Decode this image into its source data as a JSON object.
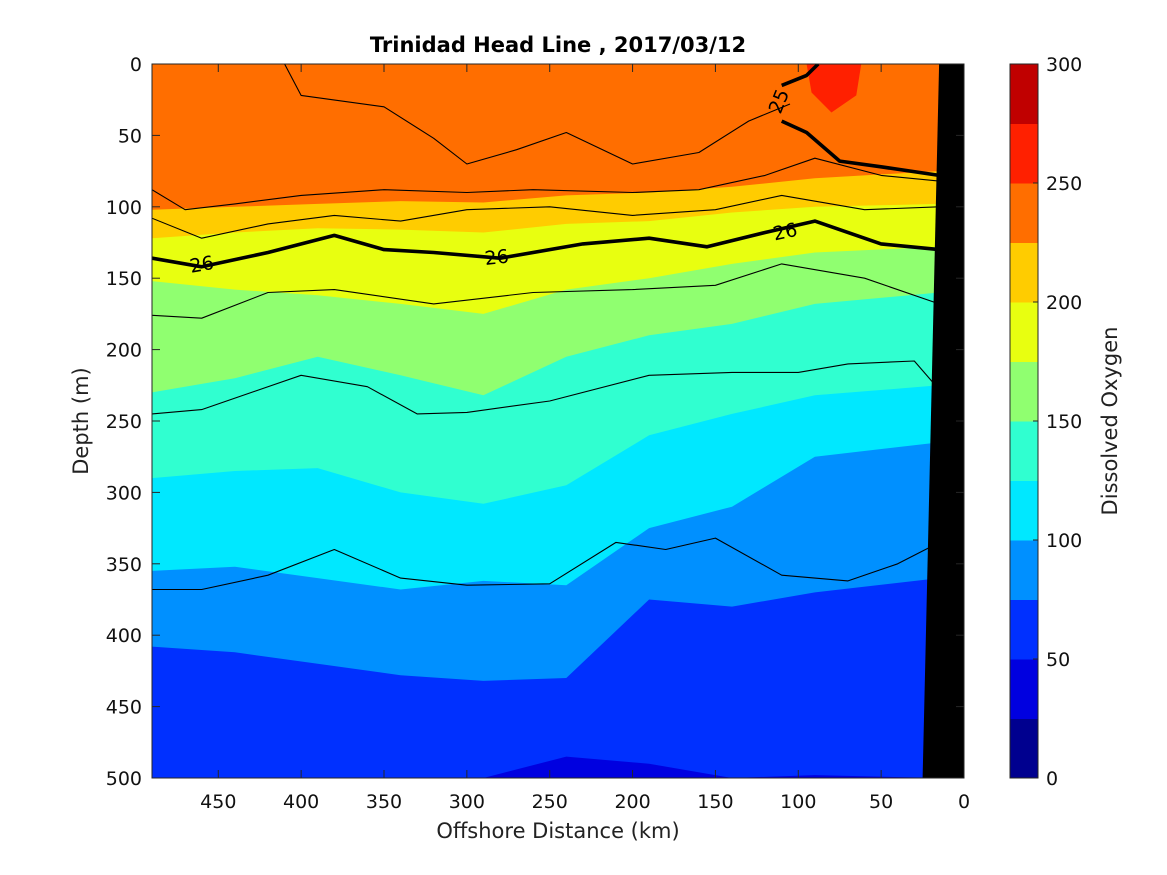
{
  "chart_data": {
    "type": "heatmap",
    "title": "Trinidad Head Line , 2017/03/12",
    "xlabel": "Offshore Distance (km)",
    "ylabel": "Depth (m)",
    "colorbar_label": "Dissolved Oxygen",
    "xlim": [
      490,
      0
    ],
    "ylim": [
      0,
      500
    ],
    "x_reversed": true,
    "y_reversed": true,
    "x_ticks": [
      450,
      400,
      350,
      300,
      250,
      200,
      150,
      100,
      50,
      0
    ],
    "y_ticks": [
      0,
      50,
      100,
      150,
      200,
      250,
      300,
      350,
      400,
      450,
      500
    ],
    "colorbar": {
      "range": [
        0,
        300
      ],
      "ticks": [
        0,
        50,
        100,
        150,
        200,
        250,
        300
      ],
      "levels": [
        0,
        25,
        50,
        75,
        100,
        125,
        150,
        175,
        200,
        225,
        250,
        275,
        300
      ],
      "colors": [
        "#00008f",
        "#0000e0",
        "#0030ff",
        "#0090ff",
        "#00e8ff",
        "#30ffd0",
        "#90ff70",
        "#e8ff10",
        "#ffcc00",
        "#ff6e00",
        "#ff2000",
        "#c00000"
      ]
    },
    "oxygen_boundaries": [
      {
        "level": 225,
        "depths": [
          0,
          0,
          0,
          0,
          0,
          0,
          0,
          0,
          0,
          0
        ]
      },
      {
        "level": 200,
        "depths": [
          102,
          100,
          98,
          96,
          97,
          92,
          90,
          86,
          80,
          75
        ]
      },
      {
        "level": 175,
        "depths": [
          122,
          118,
          115,
          116,
          118,
          112,
          110,
          104,
          100,
          98
        ]
      },
      {
        "level": 150,
        "depths": [
          152,
          158,
          162,
          168,
          175,
          158,
          150,
          140,
          132,
          128
        ]
      },
      {
        "level": 125,
        "depths": [
          230,
          220,
          205,
          218,
          232,
          205,
          190,
          182,
          168,
          160
        ]
      },
      {
        "level": 100,
        "depths": [
          290,
          285,
          283,
          300,
          308,
          295,
          260,
          245,
          232,
          225
        ]
      },
      {
        "level": 75,
        "depths": [
          355,
          352,
          360,
          368,
          362,
          365,
          325,
          310,
          275,
          265
        ]
      },
      {
        "level": 50,
        "depths": [
          408,
          412,
          420,
          428,
          432,
          430,
          375,
          380,
          370,
          360
        ]
      },
      {
        "level": 25,
        "depths": [
          500,
          500,
          500,
          500,
          500,
          485,
          490,
          500,
          498,
          500
        ]
      }
    ],
    "profile_distances": [
      490,
      440,
      390,
      340,
      290,
      240,
      190,
      140,
      90,
      15
    ],
    "density_contours": [
      {
        "label": "25",
        "emphasized": true,
        "points": [
          [
            110,
            40
          ],
          [
            95,
            48
          ],
          [
            75,
            68
          ],
          [
            50,
            72
          ],
          [
            15,
            78
          ]
        ]
      },
      {
        "label": "25",
        "emphasized": true,
        "points": [
          [
            110,
            15
          ],
          [
            95,
            8
          ],
          [
            88,
            0
          ]
        ]
      },
      {
        "label": "",
        "emphasized": false,
        "points": [
          [
            490,
            88
          ],
          [
            470,
            102
          ],
          [
            440,
            98
          ],
          [
            400,
            92
          ],
          [
            350,
            88
          ],
          [
            300,
            90
          ],
          [
            260,
            88
          ],
          [
            200,
            90
          ],
          [
            160,
            88
          ],
          [
            120,
            78
          ],
          [
            90,
            66
          ],
          [
            50,
            78
          ],
          [
            15,
            82
          ]
        ]
      },
      {
        "label": "",
        "emphasized": false,
        "points": [
          [
            490,
            108
          ],
          [
            460,
            122
          ],
          [
            420,
            112
          ],
          [
            380,
            106
          ],
          [
            340,
            110
          ],
          [
            300,
            102
          ],
          [
            250,
            100
          ],
          [
            200,
            106
          ],
          [
            150,
            102
          ],
          [
            110,
            92
          ],
          [
            60,
            102
          ],
          [
            15,
            100
          ]
        ]
      },
      {
        "label": "26",
        "emphasized": true,
        "points": [
          [
            490,
            136
          ],
          [
            460,
            142
          ],
          [
            420,
            132
          ],
          [
            380,
            120
          ],
          [
            350,
            130
          ],
          [
            320,
            132
          ],
          [
            280,
            136
          ],
          [
            230,
            126
          ],
          [
            190,
            122
          ],
          [
            155,
            128
          ],
          [
            120,
            118
          ],
          [
            90,
            110
          ],
          [
            50,
            126
          ],
          [
            15,
            130
          ]
        ]
      },
      {
        "label": "",
        "emphasized": false,
        "points": [
          [
            490,
            176
          ],
          [
            460,
            178
          ],
          [
            420,
            160
          ],
          [
            380,
            158
          ],
          [
            320,
            168
          ],
          [
            260,
            160
          ],
          [
            200,
            158
          ],
          [
            150,
            155
          ],
          [
            110,
            140
          ],
          [
            60,
            150
          ],
          [
            15,
            168
          ]
        ]
      },
      {
        "label": "",
        "emphasized": false,
        "points": [
          [
            490,
            245
          ],
          [
            460,
            242
          ],
          [
            400,
            218
          ],
          [
            360,
            226
          ],
          [
            330,
            245
          ],
          [
            300,
            244
          ],
          [
            250,
            236
          ],
          [
            190,
            218
          ],
          [
            140,
            216
          ],
          [
            100,
            216
          ],
          [
            70,
            210
          ],
          [
            30,
            208
          ],
          [
            15,
            228
          ]
        ]
      },
      {
        "label": "",
        "emphasized": false,
        "points": [
          [
            490,
            368
          ],
          [
            460,
            368
          ],
          [
            420,
            358
          ],
          [
            380,
            340
          ],
          [
            340,
            360
          ],
          [
            300,
            365
          ],
          [
            250,
            364
          ],
          [
            210,
            335
          ],
          [
            180,
            340
          ],
          [
            150,
            332
          ],
          [
            110,
            358
          ],
          [
            70,
            362
          ],
          [
            40,
            350
          ],
          [
            20,
            338
          ]
        ]
      },
      {
        "label": "",
        "emphasized": false,
        "points": [
          [
            410,
            0
          ],
          [
            400,
            22
          ],
          [
            350,
            30
          ],
          [
            320,
            52
          ],
          [
            300,
            70
          ],
          [
            270,
            60
          ],
          [
            240,
            48
          ],
          [
            200,
            70
          ],
          [
            160,
            62
          ],
          [
            130,
            40
          ],
          [
            105,
            28
          ]
        ]
      }
    ],
    "density_labels": [
      {
        "text": "26",
        "x": 460,
        "y": 140
      },
      {
        "text": "26",
        "x": 282,
        "y": 135
      },
      {
        "text": "26",
        "x": 108,
        "y": 117
      },
      {
        "text": "25",
        "x": 112,
        "y": 26
      }
    ],
    "bottom_polygon": [
      [
        15,
        0
      ],
      [
        0,
        0
      ],
      [
        0,
        500
      ],
      [
        25,
        500
      ]
    ]
  }
}
